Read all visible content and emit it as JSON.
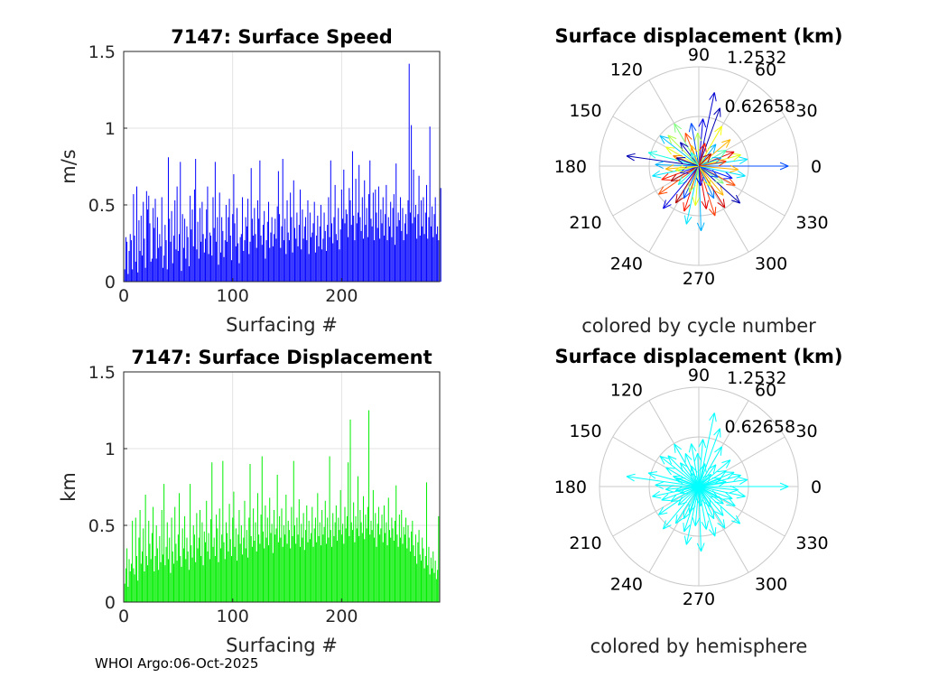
{
  "footer": "WHOI Argo:06-Oct-2025",
  "chart_data": [
    {
      "id": "speed",
      "type": "bar",
      "title": "7147: Surface Speed",
      "xlabel": "Surfacing #",
      "ylabel": "m/s",
      "xlim": [
        0,
        290
      ],
      "ylim": [
        0,
        1.5
      ],
      "xticks": [
        0,
        100,
        200
      ],
      "yticks": [
        0,
        0.5,
        1,
        1.5
      ],
      "xtick_labels": [
        "0",
        "100",
        "200"
      ],
      "ytick_labels": [
        "0",
        "0.5",
        "1",
        "1.5"
      ],
      "grid": true,
      "color": "#0000ff",
      "x_start": 1,
      "values": [
        0.08,
        0.29,
        0.26,
        0.05,
        0.2,
        0.31,
        0.27,
        0.08,
        0.57,
        0.3,
        0.13,
        0.62,
        0.06,
        0.4,
        0.2,
        0.43,
        0.17,
        0.52,
        0.28,
        0.09,
        0.59,
        0.47,
        0.56,
        0.38,
        0.13,
        0.15,
        0.48,
        0.35,
        0.54,
        0.15,
        0.42,
        0.22,
        0.31,
        0.23,
        0.55,
        0.09,
        0.17,
        0.37,
        0.27,
        0.08,
        0.81,
        0.41,
        0.26,
        0.46,
        0.12,
        0.3,
        0.53,
        0.21,
        0.62,
        0.2,
        0.31,
        0.78,
        0.07,
        0.44,
        0.22,
        0.41,
        0.15,
        0.36,
        0.29,
        0.1,
        0.56,
        0.34,
        0.47,
        0.23,
        0.6,
        0.8,
        0.21,
        0.39,
        0.15,
        0.48,
        0.26,
        0.52,
        0.31,
        0.19,
        0.28,
        0.47,
        0.62,
        0.18,
        0.32,
        0.3,
        0.17,
        0.55,
        0.35,
        0.78,
        0.26,
        0.42,
        0.11,
        0.58,
        0.19,
        0.42,
        0.33,
        0.16,
        0.27,
        0.5,
        0.26,
        0.42,
        0.54,
        0.3,
        0.14,
        0.44,
        0.7,
        0.38,
        0.23,
        0.48,
        0.25,
        0.12,
        0.29,
        0.31,
        0.55,
        0.2,
        0.27,
        0.42,
        0.36,
        0.54,
        0.18,
        0.26,
        0.74,
        0.41,
        0.3,
        0.48,
        0.31,
        0.22,
        0.53,
        0.41,
        0.79,
        0.3,
        0.24,
        0.37,
        0.46,
        0.15,
        0.27,
        0.39,
        0.52,
        0.22,
        0.32,
        0.42,
        0.23,
        0.31,
        0.41,
        0.28,
        0.49,
        0.72,
        0.44,
        0.22,
        0.36,
        0.8,
        0.27,
        0.41,
        0.18,
        0.53,
        0.32,
        0.27,
        0.58,
        0.42,
        0.19,
        0.66,
        0.35,
        0.28,
        0.45,
        0.23,
        0.37,
        0.6,
        0.21,
        0.47,
        0.28,
        0.36,
        0.42,
        0.27,
        0.53,
        0.18,
        0.45,
        0.29,
        0.32,
        0.38,
        0.52,
        0.19,
        0.3,
        0.43,
        0.23,
        0.36,
        0.5,
        0.21,
        0.28,
        0.45,
        0.33,
        0.2,
        0.37,
        0.55,
        0.29,
        0.79,
        0.38,
        0.25,
        0.42,
        0.63,
        0.31,
        0.27,
        0.48,
        0.21,
        0.34,
        0.6,
        0.41,
        0.73,
        0.38,
        0.47,
        0.44,
        0.29,
        0.61,
        0.53,
        0.37,
        0.85,
        0.43,
        0.27,
        0.67,
        0.38,
        0.45,
        0.76,
        0.42,
        0.33,
        0.55,
        0.28,
        0.66,
        0.37,
        0.48,
        0.29,
        0.57,
        0.79,
        0.41,
        0.36,
        0.58,
        0.27,
        0.6,
        0.45,
        0.35,
        0.62,
        0.28,
        0.47,
        0.38,
        0.55,
        0.3,
        0.44,
        0.63,
        0.27,
        0.42,
        0.36,
        0.52,
        0.29,
        0.48,
        0.57,
        0.24,
        0.77,
        0.36,
        0.45,
        0.4,
        0.55,
        0.33,
        0.48,
        0.27,
        0.38,
        0.44,
        0.31,
        0.53,
        1.42,
        0.45,
        1.02,
        0.38,
        0.73,
        0.42,
        0.5,
        0.28,
        0.44,
        0.69,
        0.3,
        0.53,
        0.36,
        0.55,
        0.31,
        0.45,
        0.63,
        0.28,
        0.42,
        1.01,
        0.36,
        0.49,
        0.29,
        0.44,
        0.55,
        0.31,
        0.36,
        0.27,
        0.2,
        0.61
      ]
    },
    {
      "id": "disp",
      "type": "bar",
      "title": "7147: Surface Displacement",
      "xlabel": "Surfacing #",
      "ylabel": "km",
      "xlim": [
        0,
        290
      ],
      "ylim": [
        0,
        1.5
      ],
      "xticks": [
        0,
        100,
        200
      ],
      "yticks": [
        0,
        0.5,
        1,
        1.5
      ],
      "xtick_labels": [
        "0",
        "100",
        "200"
      ],
      "ytick_labels": [
        "0",
        "0.5",
        "1",
        "1.5"
      ],
      "grid": true,
      "color": "#00ee00",
      "x_start": 1,
      "values": [
        0.12,
        0.22,
        0.35,
        0.1,
        0.28,
        0.2,
        0.25,
        0.53,
        0.22,
        0.18,
        0.55,
        0.3,
        0.14,
        0.42,
        0.6,
        0.25,
        0.33,
        0.48,
        0.2,
        0.7,
        0.3,
        0.24,
        0.53,
        0.38,
        0.28,
        0.45,
        0.62,
        0.2,
        0.3,
        0.5,
        0.35,
        0.21,
        0.43,
        0.26,
        0.6,
        0.31,
        0.77,
        0.24,
        0.36,
        0.52,
        0.28,
        0.42,
        0.19,
        0.55,
        0.33,
        0.25,
        0.62,
        0.38,
        0.27,
        0.44,
        0.71,
        0.3,
        0.23,
        0.48,
        0.35,
        0.56,
        0.28,
        0.42,
        0.33,
        0.21,
        0.77,
        0.37,
        0.29,
        0.5,
        0.44,
        0.26,
        0.58,
        0.35,
        0.42,
        0.6,
        0.3,
        0.52,
        0.24,
        0.46,
        0.39,
        0.66,
        0.33,
        0.45,
        0.28,
        0.54,
        0.91,
        0.36,
        0.42,
        0.3,
        0.57,
        0.48,
        0.26,
        0.61,
        0.35,
        0.44,
        0.92,
        0.39,
        0.28,
        0.52,
        0.45,
        0.33,
        0.64,
        0.41,
        0.3,
        0.55,
        0.72,
        0.36,
        0.48,
        0.27,
        0.44,
        0.6,
        0.38,
        0.5,
        0.31,
        0.42,
        0.66,
        0.35,
        0.47,
        0.29,
        0.55,
        0.9,
        0.43,
        0.36,
        0.61,
        0.4,
        0.52,
        0.33,
        0.71,
        0.44,
        0.38,
        0.57,
        0.95,
        0.46,
        0.35,
        0.63,
        0.42,
        0.55,
        0.37,
        0.68,
        0.45,
        0.51,
        0.32,
        0.6,
        0.44,
        0.48,
        0.83,
        0.39,
        0.56,
        0.42,
        0.61,
        0.36,
        0.5,
        0.44,
        0.7,
        0.38,
        0.53,
        0.47,
        0.35,
        0.62,
        0.43,
        0.92,
        0.5,
        0.38,
        0.55,
        0.44,
        0.67,
        0.36,
        0.51,
        0.42,
        0.58,
        0.34,
        0.47,
        0.63,
        0.39,
        0.53,
        0.41,
        0.45,
        0.62,
        0.36,
        0.48,
        0.55,
        0.39,
        0.71,
        0.43,
        0.52,
        0.37,
        0.6,
        0.44,
        0.49,
        0.66,
        0.38,
        0.55,
        0.42,
        0.95,
        0.47,
        0.36,
        0.58,
        0.43,
        0.52,
        0.63,
        0.4,
        0.55,
        0.47,
        0.73,
        0.44,
        0.51,
        0.38,
        0.62,
        0.48,
        0.56,
        0.91,
        0.43,
        1.19,
        0.52,
        0.47,
        0.65,
        0.39,
        0.56,
        0.48,
        0.82,
        0.43,
        0.6,
        0.52,
        0.45,
        0.69,
        0.41,
        0.57,
        0.48,
        0.62,
        1.25,
        0.44,
        0.53,
        0.47,
        0.73,
        0.42,
        0.58,
        0.36,
        0.51,
        0.62,
        0.44,
        0.48,
        0.57,
        0.39,
        0.63,
        0.45,
        0.52,
        0.37,
        0.68,
        0.47,
        0.42,
        0.55,
        0.48,
        0.4,
        0.53,
        0.76,
        0.44,
        0.36,
        0.57,
        0.42,
        0.6,
        0.38,
        0.49,
        0.44,
        0.55,
        0.35,
        0.5,
        0.42,
        0.33,
        0.46,
        0.53,
        0.37,
        0.3,
        0.44,
        0.25,
        0.39,
        0.47,
        0.31,
        0.27,
        0.42,
        0.35,
        0.22,
        0.3,
        0.78,
        0.24,
        0.36,
        0.18,
        0.29,
        0.22,
        0.33,
        0.19,
        0.27,
        0.15,
        0.21,
        0.56
      ]
    },
    {
      "id": "polar1",
      "type": "polar-quiver",
      "title": "Surface displacement (km)",
      "caption": "colored by cycle number",
      "rmax": 1.2532,
      "ring_labels": [
        "0.62658",
        "1.2532"
      ],
      "angle_labels": [
        "0",
        "30",
        "60",
        "90",
        "120",
        "150",
        "180",
        "210",
        "240",
        "270",
        "300",
        "330"
      ],
      "color_mode": "cycle",
      "arrows": [
        [
          0,
          1.13,
          0.2
        ],
        [
          8,
          0.62,
          0.35
        ],
        [
          15,
          0.55,
          0.6
        ],
        [
          22,
          0.48,
          0.9
        ],
        [
          30,
          0.4,
          0.45
        ],
        [
          40,
          0.52,
          0.7
        ],
        [
          52,
          0.35,
          0.3
        ],
        [
          60,
          0.58,
          0.62
        ],
        [
          70,
          0.78,
          0.05
        ],
        [
          78,
          0.95,
          0.08
        ],
        [
          85,
          0.6,
          0.1
        ],
        [
          92,
          0.42,
          0.55
        ],
        [
          100,
          0.55,
          0.2
        ],
        [
          112,
          0.45,
          0.8
        ],
        [
          120,
          0.62,
          0.5
        ],
        [
          128,
          0.38,
          0.05
        ],
        [
          135,
          0.55,
          0.55
        ],
        [
          142,
          0.62,
          0.32
        ],
        [
          150,
          0.48,
          0.6
        ],
        [
          158,
          0.35,
          0.75
        ],
        [
          165,
          0.66,
          0.4
        ],
        [
          172,
          0.92,
          0.05
        ],
        [
          178,
          0.55,
          0.3
        ],
        [
          185,
          0.42,
          0.7
        ],
        [
          192,
          0.6,
          0.35
        ],
        [
          200,
          0.5,
          0.85
        ],
        [
          208,
          0.4,
          0.95
        ],
        [
          215,
          0.62,
          0.8
        ],
        [
          222,
          0.35,
          0.4
        ],
        [
          230,
          0.7,
          0.1
        ],
        [
          238,
          0.55,
          0.95
        ],
        [
          245,
          0.45,
          0.2
        ],
        [
          252,
          0.6,
          0.85
        ],
        [
          258,
          0.75,
          0.35
        ],
        [
          265,
          0.5,
          0.6
        ],
        [
          272,
          0.82,
          0.3
        ],
        [
          280,
          0.55,
          0.9
        ],
        [
          288,
          0.66,
          0.82
        ],
        [
          295,
          0.45,
          0.25
        ],
        [
          302,
          0.62,
          0.92
        ],
        [
          310,
          0.48,
          0.7
        ],
        [
          318,
          0.7,
          0.05
        ],
        [
          325,
          0.38,
          0.5
        ],
        [
          332,
          0.52,
          0.8
        ],
        [
          340,
          0.45,
          0.15
        ],
        [
          348,
          0.6,
          0.35
        ],
        [
          355,
          0.5,
          0.7
        ],
        [
          20,
          0.3,
          0.3
        ],
        [
          110,
          0.28,
          0.7
        ],
        [
          200,
          0.25,
          0.15
        ],
        [
          300,
          0.3,
          0.6
        ],
        [
          45,
          0.22,
          0.95
        ],
        [
          160,
          0.3,
          0.05
        ],
        [
          250,
          0.35,
          0.55
        ],
        [
          330,
          0.28,
          0.2
        ],
        [
          75,
          0.3,
          0.85
        ],
        [
          190,
          0.3,
          0.62
        ],
        [
          275,
          0.25,
          0.1
        ],
        [
          120,
          0.2,
          0.4
        ],
        [
          10,
          0.35,
          0.82
        ]
      ]
    },
    {
      "id": "polar2",
      "type": "polar-quiver",
      "title": "Surface displacement (km)",
      "caption": "colored by hemisphere",
      "rmax": 1.2532,
      "ring_labels": [
        "0.62658",
        "1.2532"
      ],
      "angle_labels": [
        "0",
        "30",
        "60",
        "90",
        "120",
        "150",
        "180",
        "210",
        "240",
        "270",
        "300",
        "330"
      ],
      "color_mode": "single",
      "color": "#00ffff",
      "arrows": [
        [
          0,
          1.13,
          0
        ],
        [
          8,
          0.62,
          0
        ],
        [
          15,
          0.55,
          0
        ],
        [
          22,
          0.48,
          0
        ],
        [
          30,
          0.4,
          0
        ],
        [
          40,
          0.52,
          0
        ],
        [
          52,
          0.35,
          0
        ],
        [
          60,
          0.58,
          0
        ],
        [
          70,
          0.78,
          0
        ],
        [
          78,
          0.95,
          0
        ],
        [
          85,
          0.6,
          0
        ],
        [
          92,
          0.42,
          0
        ],
        [
          100,
          0.55,
          0
        ],
        [
          112,
          0.45,
          0
        ],
        [
          120,
          0.62,
          0
        ],
        [
          128,
          0.38,
          0
        ],
        [
          135,
          0.55,
          0
        ],
        [
          142,
          0.62,
          0
        ],
        [
          150,
          0.48,
          0
        ],
        [
          158,
          0.35,
          0
        ],
        [
          165,
          0.66,
          0
        ],
        [
          172,
          0.92,
          0
        ],
        [
          178,
          0.55,
          0
        ],
        [
          185,
          0.42,
          0
        ],
        [
          192,
          0.6,
          0
        ],
        [
          200,
          0.5,
          0
        ],
        [
          208,
          0.4,
          0
        ],
        [
          215,
          0.62,
          0
        ],
        [
          222,
          0.35,
          0
        ],
        [
          230,
          0.7,
          0
        ],
        [
          238,
          0.55,
          0
        ],
        [
          245,
          0.45,
          0
        ],
        [
          252,
          0.6,
          0
        ],
        [
          258,
          0.75,
          0
        ],
        [
          265,
          0.5,
          0
        ],
        [
          272,
          0.82,
          0
        ],
        [
          280,
          0.55,
          0
        ],
        [
          288,
          0.66,
          0
        ],
        [
          295,
          0.45,
          0
        ],
        [
          302,
          0.62,
          0
        ],
        [
          310,
          0.48,
          0
        ],
        [
          318,
          0.7,
          0
        ],
        [
          325,
          0.38,
          0
        ],
        [
          332,
          0.52,
          0
        ],
        [
          340,
          0.45,
          0
        ],
        [
          348,
          0.6,
          0
        ],
        [
          355,
          0.5,
          0
        ],
        [
          20,
          0.3,
          0
        ],
        [
          110,
          0.28,
          0
        ],
        [
          200,
          0.25,
          0
        ],
        [
          300,
          0.3,
          0
        ],
        [
          45,
          0.22,
          0
        ],
        [
          160,
          0.3,
          0
        ],
        [
          250,
          0.35,
          0
        ],
        [
          330,
          0.28,
          0
        ],
        [
          75,
          0.3,
          0
        ],
        [
          190,
          0.3,
          0
        ],
        [
          275,
          0.25,
          0
        ],
        [
          120,
          0.2,
          0
        ],
        [
          10,
          0.35,
          0
        ]
      ]
    }
  ]
}
